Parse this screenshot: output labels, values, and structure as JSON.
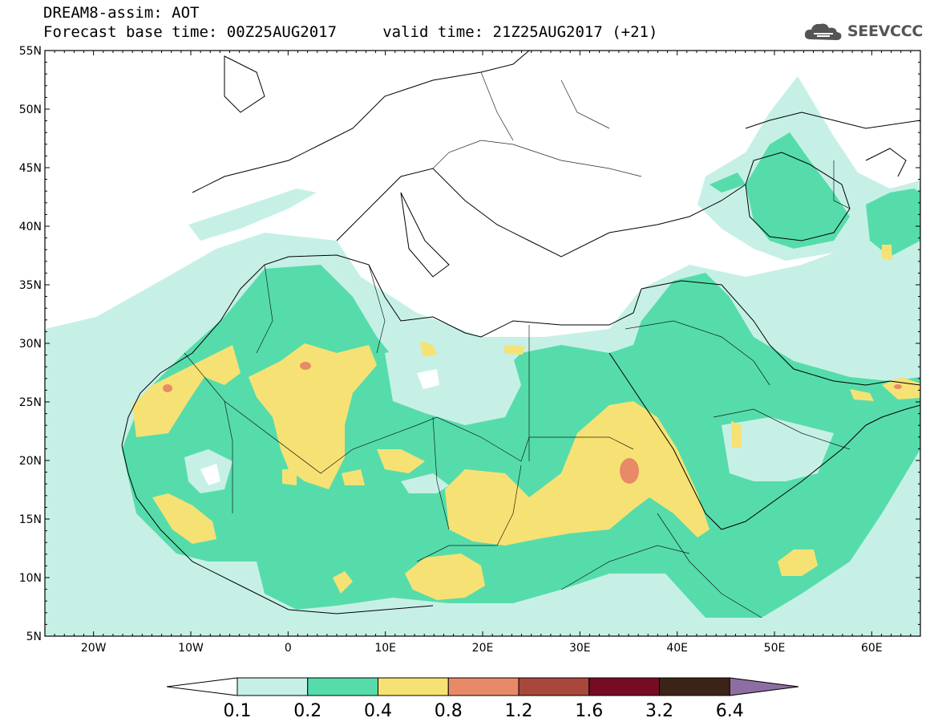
{
  "header": {
    "line1": "DREAM8-assim: AOT",
    "line2": "Forecast base time: 00Z25AUG2017     valid time: 21Z25AUG2017 (+21)",
    "logo_text": "SEEVCCC"
  },
  "map": {
    "projection": "lat-lon",
    "lon_range": [
      -25,
      65
    ],
    "lat_range": [
      5,
      55
    ],
    "lon_ticks": [
      {
        "value": -20,
        "label": "20W"
      },
      {
        "value": -10,
        "label": "10W"
      },
      {
        "value": 0,
        "label": "0"
      },
      {
        "value": 10,
        "label": "10E"
      },
      {
        "value": 20,
        "label": "20E"
      },
      {
        "value": 30,
        "label": "30E"
      },
      {
        "value": 40,
        "label": "40E"
      },
      {
        "value": 50,
        "label": "50E"
      },
      {
        "value": 60,
        "label": "60E"
      }
    ],
    "lat_ticks": [
      {
        "value": 55,
        "label": "55N"
      },
      {
        "value": 50,
        "label": "50N"
      },
      {
        "value": 45,
        "label": "45N"
      },
      {
        "value": 40,
        "label": "40N"
      },
      {
        "value": 35,
        "label": "35N"
      },
      {
        "value": 30,
        "label": "30N"
      },
      {
        "value": 25,
        "label": "25N"
      },
      {
        "value": 20,
        "label": "20N"
      },
      {
        "value": 15,
        "label": "15N"
      },
      {
        "value": 10,
        "label": "10N"
      },
      {
        "value": 5,
        "label": "5N"
      }
    ],
    "colors": {
      "c01": "#c6f0e6",
      "c02": "#56dcab",
      "c04": "#f6e274",
      "c08": "#e88a68",
      "coast": "#000000"
    }
  },
  "colorbar": {
    "colors": [
      "#c6f0e6",
      "#56dcab",
      "#f6e274",
      "#e88a68",
      "#a9473c",
      "#760b24",
      "#3b2417",
      "#8e6ea2"
    ],
    "labels": [
      "0.1",
      "0.2",
      "0.4",
      "0.8",
      "1.2",
      "1.6",
      "3.2",
      "6.4"
    ]
  }
}
